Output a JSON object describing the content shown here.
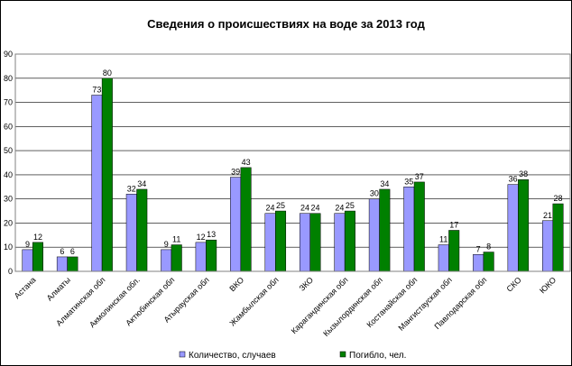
{
  "chart_data": {
    "type": "bar",
    "title": "Сведения о происшествиях на воде за  2013 год",
    "xlabel": "",
    "ylabel": "",
    "ylim": [
      0,
      90
    ],
    "yticks": [
      0,
      10,
      20,
      30,
      40,
      50,
      60,
      70,
      80,
      90
    ],
    "grid": true,
    "legend_position": "bottom",
    "categories": [
      "Астана",
      "Алматы",
      "Алматинская обл",
      "Акмолинская обл.",
      "Актюбинская обл",
      "Атырауская обл",
      "ВКО",
      "Жамбылская обл",
      "ЗКО",
      "Карагандинская обл",
      "Кызылординская обл",
      "Костанайская обл",
      "Мангистауская обл",
      "Павлодарская обл",
      "СКО",
      "ЮКО"
    ],
    "series": [
      {
        "name": "Количество, случаев",
        "color": "#9999ff",
        "values": [
          9,
          6,
          73,
          32,
          9,
          12,
          39,
          24,
          24,
          24,
          30,
          35,
          11,
          7,
          36,
          21
        ]
      },
      {
        "name": "Погибло, чел.",
        "color": "#008000",
        "values": [
          12,
          6,
          80,
          34,
          11,
          13,
          43,
          25,
          24,
          25,
          34,
          37,
          17,
          8,
          38,
          28
        ]
      }
    ]
  }
}
